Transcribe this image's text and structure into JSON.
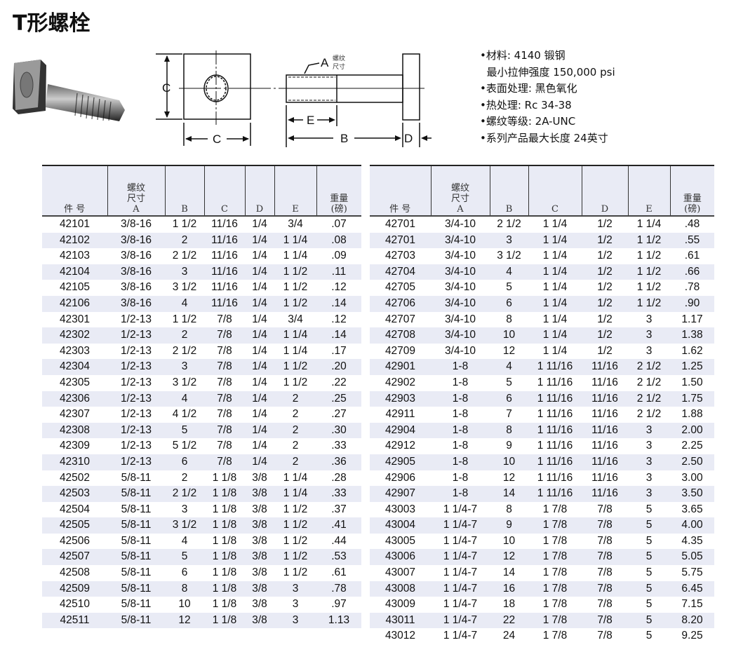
{
  "title": "T形螺栓",
  "diagram": {
    "thread_label": "A",
    "thread_note_1": "螺纹",
    "thread_note_2": "尺寸",
    "label_c_vertical": "C",
    "label_c_horizontal": "C",
    "label_e": "E",
    "label_b": "B",
    "label_d": "D"
  },
  "specs": [
    "•材料: 4140 锻钢",
    "  最小拉伸强度 150,000 psi",
    "•表面处理: 黑色氧化",
    "•热处理: Rc 34-38",
    "•螺纹等级: 2A-UNC",
    "•系列产品最大长度 24英寸"
  ],
  "headers": {
    "part": "件 号",
    "thread1": "螺纹",
    "thread2": "尺寸",
    "thread3": "A",
    "b": "B",
    "c": "C",
    "d": "D",
    "e": "E",
    "weight1": "重量",
    "weight2": "(磅)"
  },
  "left_rows": [
    [
      "42101",
      "3/8-16",
      "1 1/2",
      "11/16",
      "1/4",
      "3/4",
      ".07"
    ],
    [
      "42102",
      "3/8-16",
      "2",
      "11/16",
      "1/4",
      "1 1/4",
      ".08"
    ],
    [
      "42103",
      "3/8-16",
      "2 1/2",
      "11/16",
      "1/4",
      "1 1/4",
      ".09"
    ],
    [
      "42104",
      "3/8-16",
      "3",
      "11/16",
      "1/4",
      "1 1/2",
      ".11"
    ],
    [
      "42105",
      "3/8-16",
      "3 1/2",
      "11/16",
      "1/4",
      "1 1/2",
      ".12"
    ],
    [
      "42106",
      "3/8-16",
      "4",
      "11/16",
      "1/4",
      "1 1/2",
      ".14"
    ],
    [
      "42301",
      "1/2-13",
      "1 1/2",
      "7/8",
      "1/4",
      "3/4",
      ".12"
    ],
    [
      "42302",
      "1/2-13",
      "2",
      "7/8",
      "1/4",
      "1 1/4",
      ".14"
    ],
    [
      "42303",
      "1/2-13",
      "2 1/2",
      "7/8",
      "1/4",
      "1 1/4",
      ".17"
    ],
    [
      "42304",
      "1/2-13",
      "3",
      "7/8",
      "1/4",
      "1 1/2",
      ".20"
    ],
    [
      "42305",
      "1/2-13",
      "3 1/2",
      "7/8",
      "1/4",
      "1 1/2",
      ".22"
    ],
    [
      "42306",
      "1/2-13",
      "4",
      "7/8",
      "1/4",
      "2",
      ".25"
    ],
    [
      "42307",
      "1/2-13",
      "4 1/2",
      "7/8",
      "1/4",
      "2",
      ".27"
    ],
    [
      "42308",
      "1/2-13",
      "5",
      "7/8",
      "1/4",
      "2",
      ".30"
    ],
    [
      "42309",
      "1/2-13",
      "5 1/2",
      "7/8",
      "1/4",
      "2",
      ".33"
    ],
    [
      "42310",
      "1/2-13",
      "6",
      "7/8",
      "1/4",
      "2",
      ".36"
    ],
    [
      "42502",
      "5/8-11",
      "2",
      "1 1/8",
      "3/8",
      "1 1/4",
      ".28"
    ],
    [
      "42503",
      "5/8-11",
      "2 1/2",
      "1 1/8",
      "3/8",
      "1 1/4",
      ".33"
    ],
    [
      "42504",
      "5/8-11",
      "3",
      "1 1/8",
      "3/8",
      "1 1/2",
      ".37"
    ],
    [
      "42505",
      "5/8-11",
      "3 1/2",
      "1 1/8",
      "3/8",
      "1 1/2",
      ".41"
    ],
    [
      "42506",
      "5/8-11",
      "4",
      "1 1/8",
      "3/8",
      "1 1/2",
      ".44"
    ],
    [
      "42507",
      "5/8-11",
      "5",
      "1 1/8",
      "3/8",
      "1 1/2",
      ".53"
    ],
    [
      "42508",
      "5/8-11",
      "6",
      "1 1/8",
      "3/8",
      "1 1/2",
      ".61"
    ],
    [
      "42509",
      "5/8-11",
      "8",
      "1 1/8",
      "3/8",
      "3",
      ".78"
    ],
    [
      "42510",
      "5/8-11",
      "10",
      "1 1/8",
      "3/8",
      "3",
      ".97"
    ],
    [
      "42511",
      "5/8-11",
      "12",
      "1 1/8",
      "3/8",
      "3",
      "1.13"
    ]
  ],
  "right_rows": [
    [
      "42701",
      "3/4-10",
      "2 1/2",
      "1 1/4",
      "1/2",
      "1 1/4",
      ".48"
    ],
    [
      "42701",
      "3/4-10",
      "3",
      "1 1/4",
      "1/2",
      "1 1/2",
      ".55"
    ],
    [
      "42703",
      "3/4-10",
      "3 1/2",
      "1 1/4",
      "1/2",
      "1 1/2",
      ".61"
    ],
    [
      "42704",
      "3/4-10",
      "4",
      "1 1/4",
      "1/2",
      "1 1/2",
      ".66"
    ],
    [
      "42705",
      "3/4-10",
      "5",
      "1 1/4",
      "1/2",
      "1 1/2",
      ".78"
    ],
    [
      "42706",
      "3/4-10",
      "6",
      "1 1/4",
      "1/2",
      "1 1/2",
      ".90"
    ],
    [
      "42707",
      "3/4-10",
      "8",
      "1 1/4",
      "1/2",
      "3",
      "1.17"
    ],
    [
      "42708",
      "3/4-10",
      "10",
      "1 1/4",
      "1/2",
      "3",
      "1.38"
    ],
    [
      "42709",
      "3/4-10",
      "12",
      "1 1/4",
      "1/2",
      "3",
      "1.62"
    ],
    [
      "42901",
      "1-8",
      "4",
      "1 11/16",
      "11/16",
      "2 1/2",
      "1.25"
    ],
    [
      "42902",
      "1-8",
      "5",
      "1 11/16",
      "11/16",
      "2 1/2",
      "1.50"
    ],
    [
      "42903",
      "1-8",
      "6",
      "1 11/16",
      "11/16",
      "2 1/2",
      "1.75"
    ],
    [
      "42911",
      "1-8",
      "7",
      "1 11/16",
      "11/16",
      "2 1/2",
      "1.88"
    ],
    [
      "42904",
      "1-8",
      "8",
      "1 11/16",
      "11/16",
      "3",
      "2.00"
    ],
    [
      "42912",
      "1-8",
      "9",
      "1 11/16",
      "11/16",
      "3",
      "2.25"
    ],
    [
      "42905",
      "1-8",
      "10",
      "1 11/16",
      "11/16",
      "3",
      "2.50"
    ],
    [
      "42906",
      "1-8",
      "12",
      "1 11/16",
      "11/16",
      "3",
      "3.00"
    ],
    [
      "42907",
      "1-8",
      "14",
      "1 11/16",
      "11/16",
      "3",
      "3.50"
    ],
    [
      "43003",
      "1 1/4-7",
      "8",
      "1 7/8",
      "7/8",
      "5",
      "3.65"
    ],
    [
      "43004",
      "1 1/4-7",
      "9",
      "1 7/8",
      "7/8",
      "5",
      "4.00"
    ],
    [
      "43005",
      "1 1/4-7",
      "10",
      "1 7/8",
      "7/8",
      "5",
      "4.35"
    ],
    [
      "43006",
      "1 1/4-7",
      "12",
      "1 7/8",
      "7/8",
      "5",
      "5.05"
    ],
    [
      "43007",
      "1 1/4-7",
      "14",
      "1 7/8",
      "7/8",
      "5",
      "5.75"
    ],
    [
      "43008",
      "1 1/4-7",
      "16",
      "1 7/8",
      "7/8",
      "5",
      "6.45"
    ],
    [
      "43009",
      "1 1/4-7",
      "18",
      "1 7/8",
      "7/8",
      "5",
      "7.15"
    ],
    [
      "43011",
      "1 1/4-7",
      "22",
      "1 7/8",
      "7/8",
      "5",
      "8.20"
    ],
    [
      "43012",
      "1 1/4-7",
      "24",
      "1 7/8",
      "7/8",
      "5",
      "9.25"
    ]
  ]
}
